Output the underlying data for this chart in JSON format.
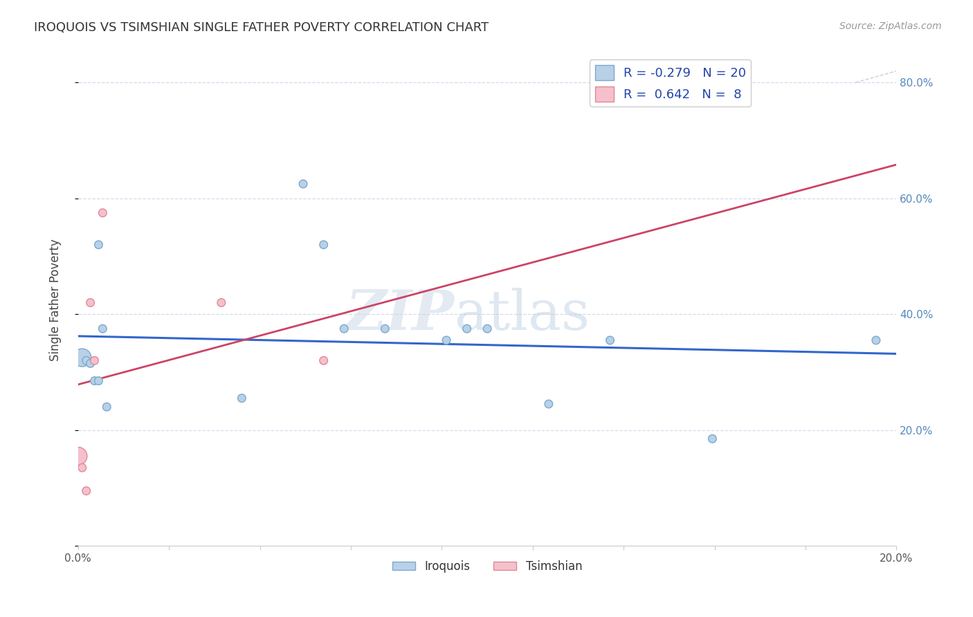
{
  "title": "IROQUOIS VS TSIMSHIAN SINGLE FATHER POVERTY CORRELATION CHART",
  "source": "Source: ZipAtlas.com",
  "ylabel_label": "Single Father Poverty",
  "x_min": 0.0,
  "x_max": 0.2,
  "y_min": 0.0,
  "y_max": 0.85,
  "iroquois_color": "#b8d0e8",
  "iroquois_edge": "#7aaacc",
  "tsimshian_color": "#f5c0cc",
  "tsimshian_edge": "#e08898",
  "iroquois_R": -0.279,
  "iroquois_N": 20,
  "tsimshian_R": 0.642,
  "tsimshian_N": 8,
  "trend_color_iroquois": "#3366cc",
  "trend_color_tsimshian": "#cc4466",
  "grid_color": "#d0dded",
  "background_color": "#ffffff",
  "iroquois_x": [
    0.001,
    0.002,
    0.003,
    0.004,
    0.005,
    0.005,
    0.006,
    0.007,
    0.04,
    0.055,
    0.06,
    0.065,
    0.075,
    0.09,
    0.095,
    0.1,
    0.115,
    0.13,
    0.155,
    0.195
  ],
  "iroquois_y": [
    0.325,
    0.32,
    0.315,
    0.285,
    0.52,
    0.285,
    0.375,
    0.24,
    0.255,
    0.625,
    0.52,
    0.375,
    0.375,
    0.355,
    0.375,
    0.375,
    0.245,
    0.355,
    0.185,
    0.355
  ],
  "iroquois_size": [
    80,
    80,
    80,
    80,
    80,
    80,
    80,
    80,
    80,
    80,
    80,
    80,
    80,
    80,
    80,
    80,
    80,
    80,
    80,
    80
  ],
  "iroquois_big_idx": 0,
  "tsimshian_x": [
    0.0,
    0.001,
    0.002,
    0.003,
    0.004,
    0.006,
    0.035,
    0.06
  ],
  "tsimshian_y": [
    0.155,
    0.135,
    0.095,
    0.42,
    0.32,
    0.575,
    0.42,
    0.32
  ],
  "tsimshian_size": [
    80,
    80,
    80,
    80,
    80,
    80,
    80,
    80
  ],
  "watermark_zip_color": "#ccdff0",
  "watermark_atlas_color": "#b8cfe8",
  "dashed_line_color": "#ccbbcc"
}
